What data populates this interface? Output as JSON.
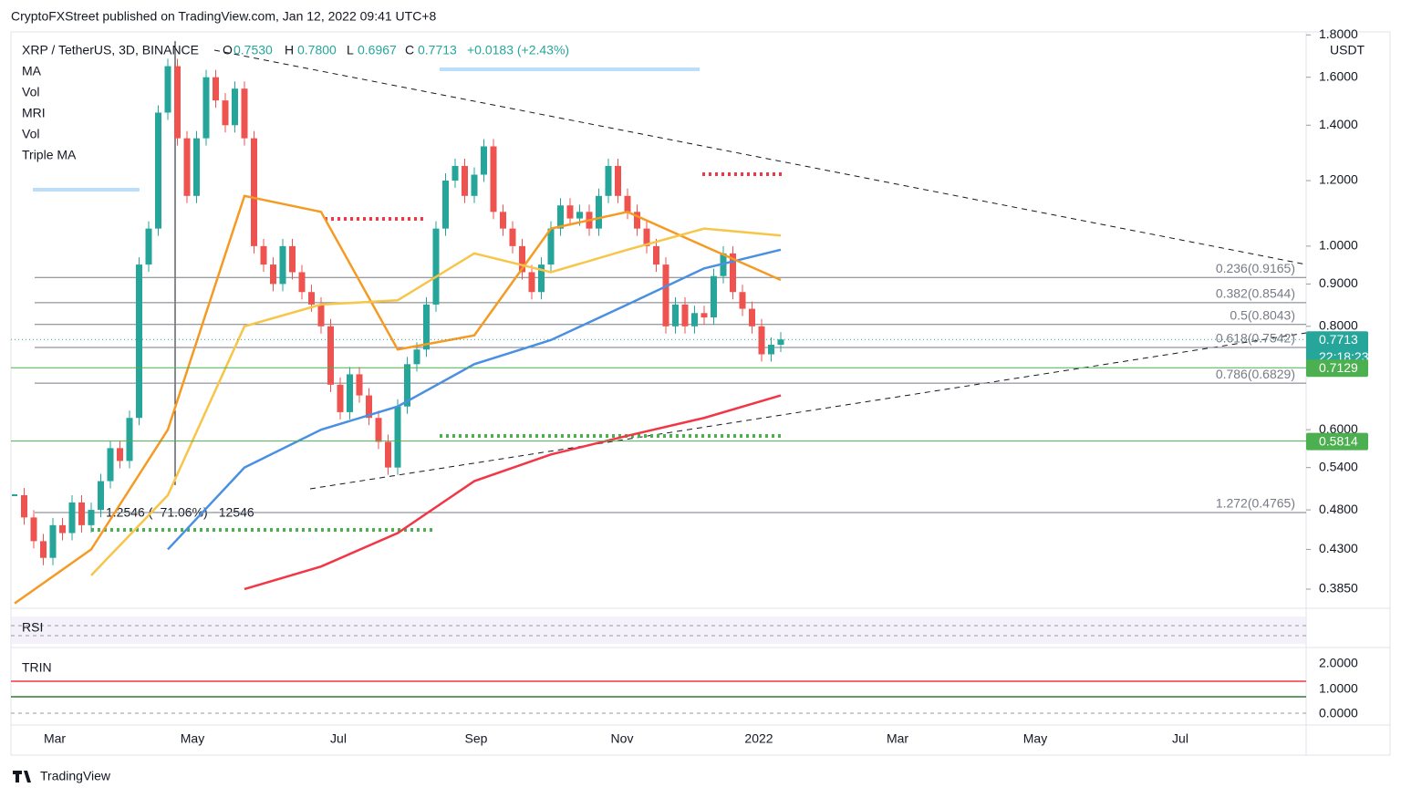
{
  "header": {
    "title": "CryptoFXStreet published on TradingView.com, Jan 12, 2022 09:41 UTC+8"
  },
  "legend": {
    "symbol": "XRP / TetherUS, 3D, BINANCE",
    "o_label": "O",
    "open": "0.7530",
    "h_label": "H",
    "high": "0.7800",
    "l_label": "L",
    "low": "0.6967",
    "c_label": "C",
    "close": "0.7713",
    "change": "+0.0183 (+2.43%)",
    "indicators": [
      "MA",
      "Vol",
      "MRI",
      "Vol",
      "Triple MA"
    ]
  },
  "chart_data": {
    "type": "candlestick",
    "log_scale": true,
    "currency": "USDT",
    "ylim": [
      0.365,
      1.815
    ],
    "yticks": [
      {
        "value": 1.8,
        "label": "1.8000"
      },
      {
        "value": 1.6,
        "label": "1.6000"
      },
      {
        "value": 1.4,
        "label": "1.4000"
      },
      {
        "value": 1.2,
        "label": "1.2000"
      },
      {
        "value": 1.0,
        "label": "1.0000"
      },
      {
        "value": 0.9,
        "label": "0.9000"
      },
      {
        "value": 0.8,
        "label": "0.8000"
      },
      {
        "value": 0.6,
        "label": "0.6000"
      },
      {
        "value": 0.54,
        "label": "0.5400"
      },
      {
        "value": 0.48,
        "label": "0.4800"
      },
      {
        "value": 0.43,
        "label": "0.4300"
      },
      {
        "value": 0.385,
        "label": "0.3850"
      }
    ],
    "x_labels": [
      "Mar",
      "May",
      "Jul",
      "Sep",
      "Nov",
      "2022",
      "Mar",
      "May",
      "Jul"
    ],
    "closes": [
      0.5,
      0.47,
      0.44,
      0.42,
      0.46,
      0.45,
      0.49,
      0.46,
      0.48,
      0.52,
      0.57,
      0.55,
      0.62,
      0.95,
      1.05,
      1.45,
      1.65,
      1.35,
      1.15,
      1.35,
      1.6,
      1.5,
      1.4,
      1.55,
      1.35,
      1.0,
      0.95,
      0.9,
      1.0,
      0.93,
      0.88,
      0.85,
      0.8,
      0.68,
      0.63,
      0.7,
      0.66,
      0.62,
      0.58,
      0.54,
      0.64,
      0.72,
      0.75,
      0.85,
      1.05,
      1.2,
      1.25,
      1.15,
      1.22,
      1.32,
      1.1,
      1.05,
      1.0,
      0.93,
      0.88,
      0.95,
      1.05,
      1.12,
      1.08,
      1.1,
      1.05,
      1.15,
      1.25,
      1.15,
      1.1,
      1.05,
      1.0,
      0.95,
      0.8,
      0.85,
      0.8,
      0.83,
      0.82,
      0.92,
      0.98,
      0.88,
      0.84,
      0.8,
      0.74,
      0.76,
      0.7713
    ],
    "series": [
      {
        "color": "#f23645",
        "values": [
          null,
          null,
          null,
          0.385,
          0.41,
          0.45,
          0.52,
          0.56,
          0.59,
          0.62,
          0.66
        ]
      },
      {
        "color": "#4a90e2",
        "values": [
          null,
          null,
          0.43,
          0.54,
          0.6,
          0.64,
          0.72,
          0.77,
          0.85,
          0.94,
          0.99
        ]
      },
      {
        "color": "#f59a23",
        "values": [
          0.37,
          0.43,
          0.6,
          1.15,
          1.1,
          0.75,
          0.78,
          1.05,
          1.1,
          1.0,
          0.91
        ]
      },
      {
        "color": "#f7c548",
        "values": [
          null,
          0.4,
          0.5,
          0.8,
          0.85,
          0.86,
          0.98,
          0.93,
          0.99,
          1.05,
          1.03
        ]
      }
    ],
    "fib_levels": [
      {
        "label": "0.236(0.9165)",
        "value": 0.9165
      },
      {
        "label": "0.382(0.8544)",
        "value": 0.8544
      },
      {
        "label": "0.5(0.8043)",
        "value": 0.8043
      },
      {
        "label": "0.618(0.7542)",
        "value": 0.7542
      },
      {
        "label": "0.786(0.6829)",
        "value": 0.6829
      },
      {
        "label": "1.272(0.4765)",
        "value": 0.4765
      }
    ],
    "price_tags": [
      {
        "value": 0.7713,
        "label": "0.7713",
        "timer": "22:18:23",
        "color": "#26a69a"
      },
      {
        "value": 0.7129,
        "label": "0.7129",
        "color": "#4caf50"
      },
      {
        "value": 0.5814,
        "label": "0.5814",
        "color": "#4caf50"
      }
    ],
    "measure": "1.2546 (−71.06%) −12546"
  },
  "panels": {
    "rsi": "RSI",
    "trin": "TRIN",
    "trin_ticks": [
      "2.0000",
      "1.0000",
      "0.0000"
    ]
  },
  "footer": "TradingView"
}
